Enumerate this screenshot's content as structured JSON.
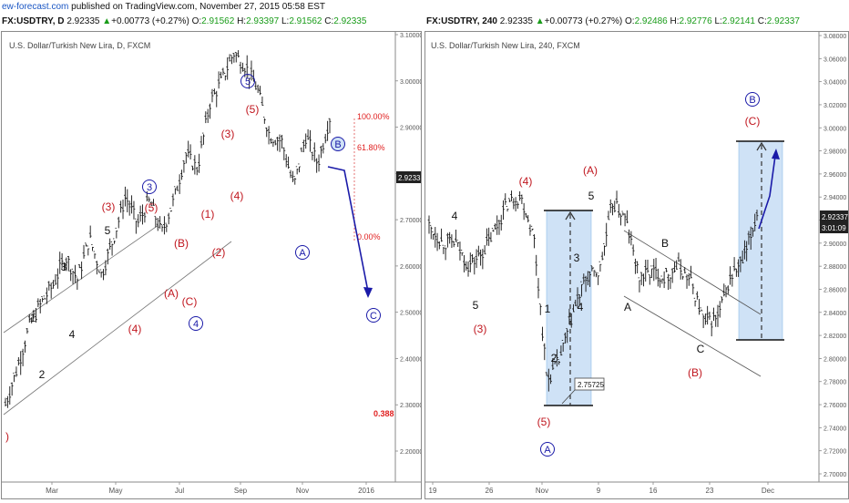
{
  "header": {
    "brand": "ew-forecast.com",
    "published": " published on TradingView.com, November 27, 2015 05:58 EST"
  },
  "left": {
    "symbol": "FX:USDTRY, D",
    "last": "2.92335",
    "change": "+0.00773 (+0.27%)",
    "open": "2.91562",
    "high": "2.93397",
    "low": "2.91562",
    "close": "2.92335",
    "title": "U.S. Dollar/Turkish New Lira, D, FXCM"
  },
  "right": {
    "symbol": "FX:USDTRY, 240",
    "last": "2.92335",
    "change": "+0.00773 (+0.27%)",
    "open": "2.92486",
    "high": "2.92776",
    "low": "2.92141",
    "close": "2.92337",
    "title": "U.S. Dollar/Turkish New Lira, 240, FXCM"
  },
  "colors": {
    "wave_red": "#c0161e",
    "wave_blue": "#1a1aa8",
    "fib_red": "#e02020",
    "box_fill": "#cfe2f6",
    "price_tag": "#222222",
    "up_green": "#1a9c1a"
  },
  "chart_data": [
    {
      "type": "line",
      "panel": "left",
      "ylim": [
        2.15,
        3.1
      ],
      "yticks": [
        "3.10000",
        "3.00000",
        "2.90000",
        "2.80000",
        "2.70000",
        "2.60000",
        "2.50000",
        "2.40000",
        "2.30000",
        "2.20000"
      ],
      "xticks": [
        "Mar",
        "May",
        "Jul",
        "Sep",
        "Nov",
        "2016"
      ],
      "last_price_label": "2.92335",
      "fib_labels": [
        "100.00%",
        "61.80%",
        "0.00%",
        "0.388"
      ],
      "wave_labels": {
        "black": [
          "1",
          "2",
          "3",
          "4",
          "5"
        ],
        "red": [
          "(3)",
          "(5)",
          "(4)",
          "(B)",
          "(A)",
          "(C)",
          "(1)",
          "(2)",
          "(3)",
          "(4)",
          "(5)",
          ")"
        ],
        "blue_circled": [
          "3",
          "4",
          "5",
          "A",
          "B",
          "C"
        ]
      },
      "close_path": [
        [
          "Jan",
          2.3
        ],
        [
          "Feb",
          2.38
        ],
        [
          "Feb",
          2.47
        ],
        [
          "Mar",
          2.52
        ],
        [
          "Mar",
          2.56
        ],
        [
          "Mar",
          2.62
        ],
        [
          "Apr",
          2.57
        ],
        [
          "Apr",
          2.66
        ],
        [
          "May",
          2.58
        ],
        [
          "May",
          2.66
        ],
        [
          "Jun",
          2.75
        ],
        [
          "Jun",
          2.69
        ],
        [
          "Jun",
          2.74
        ],
        [
          "Jul",
          2.67
        ],
        [
          "Jul",
          2.74
        ],
        [
          "Jul",
          2.84
        ],
        [
          "Aug",
          2.81
        ],
        [
          "Aug",
          2.95
        ],
        [
          "Aug",
          3.0
        ],
        [
          "Sep",
          3.06
        ],
        [
          "Sep",
          3.03
        ],
        [
          "Sep",
          2.98
        ],
        [
          "Oct",
          2.88
        ],
        [
          "Oct",
          2.87
        ],
        [
          "Oct",
          2.77
        ],
        [
          "Nov",
          2.88
        ],
        [
          "Nov",
          2.82
        ],
        [
          "Nov",
          2.92
        ]
      ]
    },
    {
      "type": "line",
      "panel": "right",
      "ylim": [
        2.7,
        3.08
      ],
      "yticks": [
        "3.08000",
        "3.06000",
        "3.04000",
        "3.02000",
        "3.00000",
        "2.98000",
        "2.96000",
        "2.94000",
        "2.92000",
        "2.90000",
        "2.88000",
        "2.86000",
        "2.84000",
        "2.82000",
        "2.80000",
        "2.78000",
        "2.76000",
        "2.74000",
        "2.72000",
        "2.70000"
      ],
      "xticks": [
        "19",
        "26",
        "Nov",
        "9",
        "16",
        "23",
        "Dec"
      ],
      "last_price_label": "2.92337",
      "countdown": "3:01:09",
      "low_price_label": "2.75725",
      "wave_labels": {
        "black": [
          "4",
          "5",
          "5",
          "1",
          "2",
          "3",
          "4",
          "A",
          "B",
          "C"
        ],
        "red": [
          "(3)",
          "(4)",
          "(5)",
          "(A)",
          "(B)",
          "(C)"
        ],
        "blue_circled": [
          "A",
          "B"
        ]
      },
      "close_path": [
        [
          "19",
          2.915
        ],
        [
          "21",
          2.9
        ],
        [
          "24",
          2.9
        ],
        [
          "26",
          2.88
        ],
        [
          "27",
          2.89
        ],
        [
          "28",
          2.91
        ],
        [
          "29",
          2.935
        ],
        [
          "30",
          2.94
        ],
        [
          "31",
          2.905
        ],
        [
          "Nov 1",
          2.78
        ],
        [
          "Nov 2",
          2.8
        ],
        [
          "Nov 3",
          2.84
        ],
        [
          "Nov 4",
          2.87
        ],
        [
          "Nov 5",
          2.875
        ],
        [
          "Nov 6",
          2.935
        ],
        [
          "Nov 9",
          2.92
        ],
        [
          "Nov 11",
          2.87
        ],
        [
          "Nov 12",
          2.875
        ],
        [
          "Nov 14",
          2.87
        ],
        [
          "Nov 16",
          2.88
        ],
        [
          "Nov 18",
          2.865
        ],
        [
          "Nov 20",
          2.83
        ],
        [
          "Nov 21",
          2.835
        ],
        [
          "Nov 23",
          2.87
        ],
        [
          "Nov 24",
          2.885
        ],
        [
          "Nov 26",
          2.925
        ]
      ]
    }
  ]
}
